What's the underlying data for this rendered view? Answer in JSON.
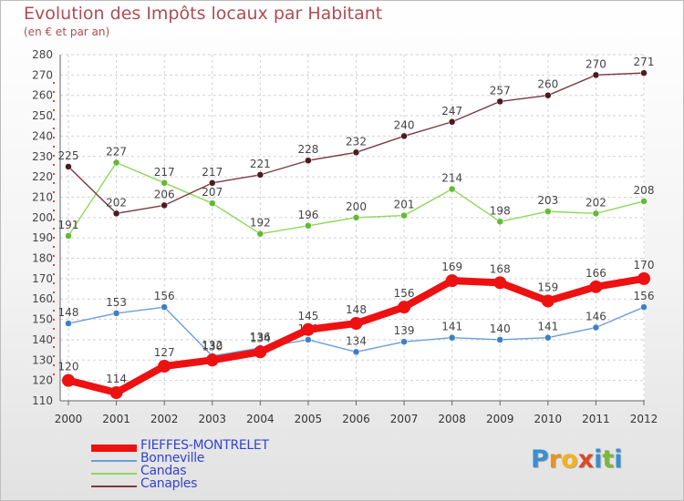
{
  "title": "Evolution des Impôts locaux par Habitant",
  "subtitle": "(en € et par an)",
  "logo": {
    "letters": [
      "P",
      "r",
      "o",
      "x",
      "i",
      "t",
      "i"
    ],
    "colors": [
      "#3a8fd0",
      "#e8931f",
      "#f6b21b",
      "#d94a26",
      "#3a8fd0",
      "#7fb739",
      "#3a8fd0"
    ]
  },
  "chart_data": {
    "type": "line",
    "title": "Evolution des Impôts locaux par Habitant",
    "subtitle": "(en € et par an)",
    "x": [
      "2000",
      "2001",
      "2002",
      "2003",
      "2004",
      "2005",
      "2006",
      "2007",
      "2008",
      "2009",
      "2010",
      "2011",
      "2012"
    ],
    "ylim": [
      110,
      280
    ],
    "yticks": [
      110,
      120,
      130,
      140,
      150,
      160,
      170,
      180,
      190,
      200,
      210,
      220,
      230,
      240,
      250,
      260,
      270,
      280
    ],
    "grid": true,
    "legend_position": "bottom-left",
    "series": [
      {
        "name": "FIEFFES-MONTRELET",
        "color": "#ee1111",
        "emphasis": true,
        "values": [
          120,
          114,
          127,
          130,
          134,
          145,
          148,
          156,
          169,
          168,
          159,
          166,
          170
        ]
      },
      {
        "name": "Bonneville",
        "color": "#6a9fd6",
        "emphasis": false,
        "values": [
          148,
          153,
          156,
          132,
          136,
          140,
          134,
          139,
          141,
          140,
          141,
          146,
          156
        ]
      },
      {
        "name": "Candas",
        "color": "#8fd85a",
        "emphasis": false,
        "values": [
          191,
          227,
          217,
          207,
          192,
          196,
          200,
          201,
          214,
          198,
          203,
          202,
          208
        ]
      },
      {
        "name": "Canaples",
        "color": "#7a3a3f",
        "emphasis": false,
        "values": [
          225,
          202,
          206,
          217,
          221,
          228,
          232,
          240,
          247,
          257,
          260,
          270,
          271
        ]
      }
    ]
  }
}
